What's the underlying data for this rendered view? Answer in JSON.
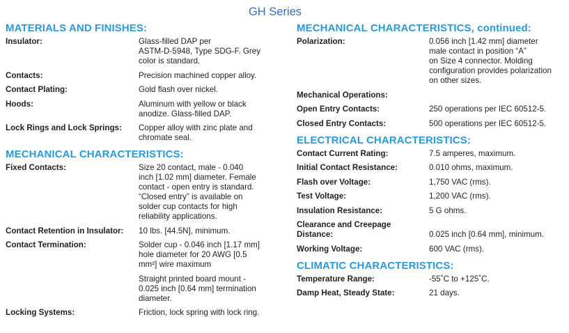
{
  "title": "GH Series",
  "columns": [
    {
      "id": "left",
      "sections": [
        {
          "heading": "MATERIALS AND FINISHES:",
          "rows": [
            {
              "label": [
                "Insulator:"
              ],
              "value": [
                "Glass-filled DAP per",
                "ASTM-D-5948, Type SDG-F. Grey",
                "color is standard."
              ]
            },
            {
              "label": [
                "Contacts:"
              ],
              "value": [
                "Precision machined copper alloy."
              ]
            },
            {
              "label": [
                "Contact Plating:"
              ],
              "value": [
                "Gold flash over nickel."
              ]
            },
            {
              "label": [
                "Hoods:"
              ],
              "value": [
                "Aluminum with yellow or black",
                "anodize.  Glass-filled DAP."
              ]
            },
            {
              "label": [
                "Lock Rings and Lock Springs:"
              ],
              "value": [
                "Copper alloy with zinc plate and",
                "chromate seal."
              ]
            }
          ]
        },
        {
          "heading": "MECHANICAL CHARACTERISTICS:",
          "rows": [
            {
              "label": [
                "Fixed Contacts:"
              ],
              "value": [
                "Size 20 contact, male - 0.040",
                "inch [1.02 mm] diameter. Female",
                "contact - open entry is standard.",
                "“Closed entry” is available on",
                "solder cup contacts for high",
                "reliability applications."
              ]
            },
            {
              "label": [
                "Contact Retention in Insulator:"
              ],
              "value": [
                "10 lbs. [44.5N], minimum."
              ]
            },
            {
              "label": [
                "Contact Termination:"
              ],
              "value": [
                "Solder cup - 0.046 inch [1.17 mm]",
                "hole diameter  for 20 AWG [0.5",
                "mm²] wire maximum"
              ]
            },
            {
              "label": [
                ""
              ],
              "value": [
                "Straight printed board mount -",
                "0.025 inch [0.64 mm] termination",
                "diameter."
              ]
            },
            {
              "label": [
                "Locking Systems:"
              ],
              "value": [
                "Friction, lock spring with lock ring."
              ]
            }
          ]
        }
      ]
    },
    {
      "id": "right",
      "sections": [
        {
          "heading": "MECHANICAL CHARACTERISTICS, continued:",
          "rows": [
            {
              "label": [
                "Polarization:"
              ],
              "value": [
                "0.056 inch [1.42 mm] diameter",
                "male contact in position “A”",
                "on Size 4 connector.  Molding",
                "configuration provides polarization",
                "on other sizes."
              ]
            },
            {
              "label": [
                "Mechanical Operations:"
              ],
              "value": []
            },
            {
              "label": [
                "Open Entry Contacts:"
              ],
              "value": [
                "250 operations per IEC 60512-5."
              ]
            },
            {
              "label": [
                "Closed Entry Contacts:"
              ],
              "value": [
                "500 operations per IEC 60512-5."
              ]
            }
          ]
        },
        {
          "heading": "ELECTRICAL CHARACTERISTICS:",
          "rows": [
            {
              "label": [
                "Contact Current Rating:"
              ],
              "value": [
                "7.5 amperes, maximum."
              ]
            },
            {
              "label": [
                "Initial Contact Resistance:"
              ],
              "value": [
                "0.010 ohms, maximum."
              ]
            },
            {
              "label": [
                "Flash over Voltage:"
              ],
              "value": [
                "1,750 VAC (rms)."
              ]
            },
            {
              "label": [
                "Test Voltage:"
              ],
              "value": [
                "1,200 VAC (rms)."
              ]
            },
            {
              "label": [
                "Insulation Resistance:"
              ],
              "value": [
                "5 G ohms."
              ]
            },
            {
              "label": [
                "Clearance and Creepage",
                "Distance:"
              ],
              "value": [
                "0.025 inch [0.64 mm], minimum."
              ]
            },
            {
              "label": [
                "Working Voltage:"
              ],
              "value": [
                "600 VAC (rms)."
              ]
            }
          ]
        },
        {
          "heading": "CLIMATIC CHARACTERISTICS:",
          "rows": [
            {
              "label": [
                "Temperature Range:"
              ],
              "value": [
                "-55˚C to +125˚C."
              ]
            },
            {
              "label": [
                "Damp Heat, Steady State:"
              ],
              "value": [
                "21 days."
              ]
            }
          ]
        }
      ]
    }
  ],
  "colors": {
    "title": "#3d6fb6",
    "heading": "#2b9ad6",
    "text": "#231f20"
  }
}
